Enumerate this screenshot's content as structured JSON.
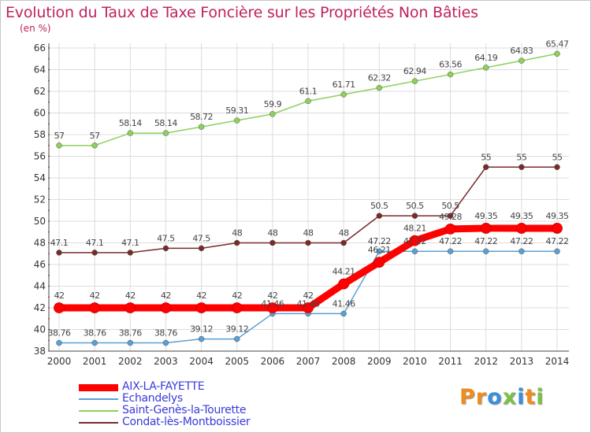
{
  "title": "Evolution du Taux de Taxe Foncière sur les Propriétés Non Bâties",
  "unit": "(en %)",
  "logo": {
    "text": "Proxiti",
    "letters": [
      {
        "ch": "P",
        "color": "#f08c1c"
      },
      {
        "ch": "r",
        "color": "#f08c1c"
      },
      {
        "ch": "o",
        "color": "#3a8edb"
      },
      {
        "ch": "x",
        "color": "#7bc142"
      },
      {
        "ch": "i",
        "color": "#3a8edb"
      },
      {
        "ch": "t",
        "color": "#f08c1c"
      },
      {
        "ch": "i",
        "color": "#7bc142"
      }
    ]
  },
  "chart_data": {
    "type": "line",
    "title": "Evolution du Taux de Taxe Foncière sur les Propriétés Non Bâties",
    "ylabel": "(en %)",
    "xlabel": "",
    "ylim": [
      38,
      66
    ],
    "yticks": [
      38,
      40,
      42,
      44,
      46,
      48,
      50,
      52,
      54,
      56,
      58,
      60,
      62,
      64,
      66
    ],
    "x": [
      "2000",
      "2001",
      "2002",
      "2003",
      "2004",
      "2005",
      "2006",
      "2007",
      "2008",
      "2009",
      "2010",
      "2011",
      "2012",
      "2013",
      "2014"
    ],
    "grid": true,
    "legend_position": "bottom-left",
    "series": [
      {
        "name": "AIX-LA-FAYETTE",
        "color": "#ff0000",
        "values": [
          42,
          42,
          42,
          42,
          42,
          42,
          42,
          42,
          44.21,
          46.21,
          48.21,
          49.28,
          49.35,
          49.35,
          49.35
        ],
        "labels": [
          "42",
          "42",
          "42",
          "42",
          "42",
          "42",
          "42",
          "42",
          "44.21",
          "46.21",
          "48.21",
          "49.28",
          "49.35",
          "49.35",
          "49.35"
        ]
      },
      {
        "name": "Echandelys",
        "color": "#5a9fd4",
        "values": [
          38.76,
          38.76,
          38.76,
          38.76,
          39.12,
          39.12,
          41.46,
          41.46,
          41.46,
          47.22,
          47.22,
          47.22,
          47.22,
          47.22,
          47.22
        ],
        "labels": [
          "38.76",
          "38.76",
          "38.76",
          "38.76",
          "39.12",
          "39.12",
          "41.46",
          "41.46",
          "41.46",
          "47.22",
          "47.22",
          "47.22",
          "47.22",
          "47.22",
          "47.22"
        ]
      },
      {
        "name": "Saint-Genès-la-Tourette",
        "color": "#8ed05a",
        "values": [
          57,
          57,
          58.14,
          58.14,
          58.72,
          59.31,
          59.9,
          61.1,
          61.71,
          62.32,
          62.94,
          63.56,
          64.19,
          64.83,
          65.47
        ],
        "labels": [
          "57",
          "57",
          "58.14",
          "58.14",
          "58.72",
          "59.31",
          "59.9",
          "61.1",
          "61.71",
          "62.32",
          "62.94",
          "63.56",
          "64.19",
          "64.83",
          "65.47"
        ]
      },
      {
        "name": "Condat-lès-Montboissier",
        "color": "#7a2a2a",
        "values": [
          47.1,
          47.1,
          47.1,
          47.5,
          47.5,
          48,
          48,
          48,
          48,
          50.5,
          50.5,
          50.5,
          55,
          55,
          55
        ],
        "labels": [
          "47.1",
          "47.1",
          "47.1",
          "47.5",
          "47.5",
          "48",
          "48",
          "48",
          "48",
          "50.5",
          "50.5",
          "50.5",
          "55",
          "55",
          "55"
        ]
      }
    ]
  }
}
